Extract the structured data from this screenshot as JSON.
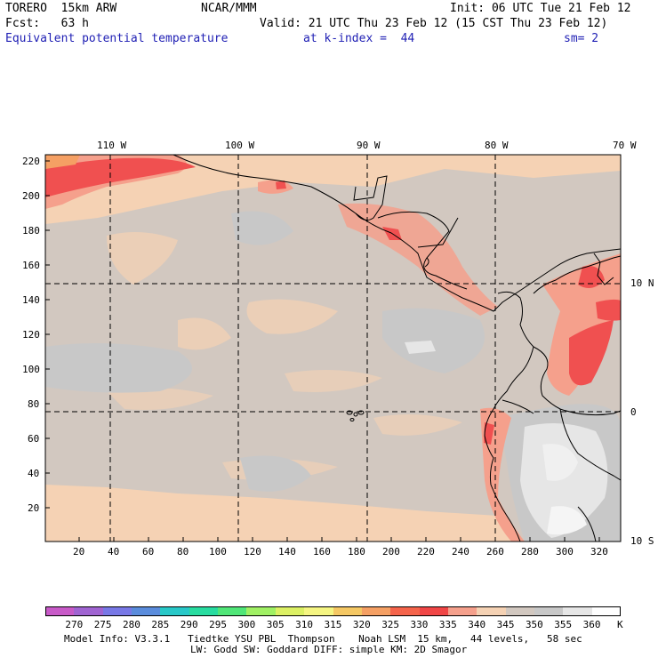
{
  "header": {
    "model": "TORERO  15km ARW",
    "org": "NCAR/MMM",
    "init": "Init: 06 UTC Tue 21 Feb 12",
    "fcst": "Fcst:   63 h",
    "valid": "Valid: 21 UTC Thu 23 Feb 12 (15 CST Thu 23 Feb 12)",
    "field": "Equivalent potential temperature",
    "level": "at k-index =  44",
    "smooth": "sm= 2"
  },
  "map": {
    "lon_labels": [
      "110 W",
      "100 W",
      "90 W",
      "80 W",
      "70 W"
    ],
    "lat_labels": [
      "10 N",
      "0",
      "10 S"
    ],
    "x_ticks": [
      "20",
      "40",
      "60",
      "80",
      "100",
      "120",
      "140",
      "160",
      "180",
      "200",
      "220",
      "240",
      "260",
      "280",
      "300",
      "320"
    ],
    "y_ticks": [
      "220",
      "200",
      "180",
      "160",
      "140",
      "120",
      "100",
      "80",
      "60",
      "40",
      "20"
    ]
  },
  "colorbar": {
    "labels": [
      "270",
      "275",
      "280",
      "285",
      "290",
      "295",
      "300",
      "305",
      "310",
      "315",
      "320",
      "325",
      "330",
      "335",
      "340",
      "345",
      "350",
      "355",
      "360",
      "K"
    ],
    "colors": [
      "#c85ac8",
      "#a064d2",
      "#7878e6",
      "#5a8cdc",
      "#28c8c8",
      "#28dca0",
      "#50e678",
      "#a0f064",
      "#dcf064",
      "#f5f582",
      "#f5c864",
      "#f5a064",
      "#f5644b",
      "#f04646",
      "#f5a08c",
      "#f5d2b4",
      "#d2c8c0",
      "#c8c8c8",
      "#e6e6e6",
      "#ffffff"
    ]
  },
  "footer": {
    "line1": "Model Info: V3.3.1   Tiedtke YSU PBL  Thompson    Noah LSM  15 km,   44 levels,   58 sec",
    "line2": "LW: Godd SW: Goddard DIFF: simple KM: 2D Smagor"
  }
}
